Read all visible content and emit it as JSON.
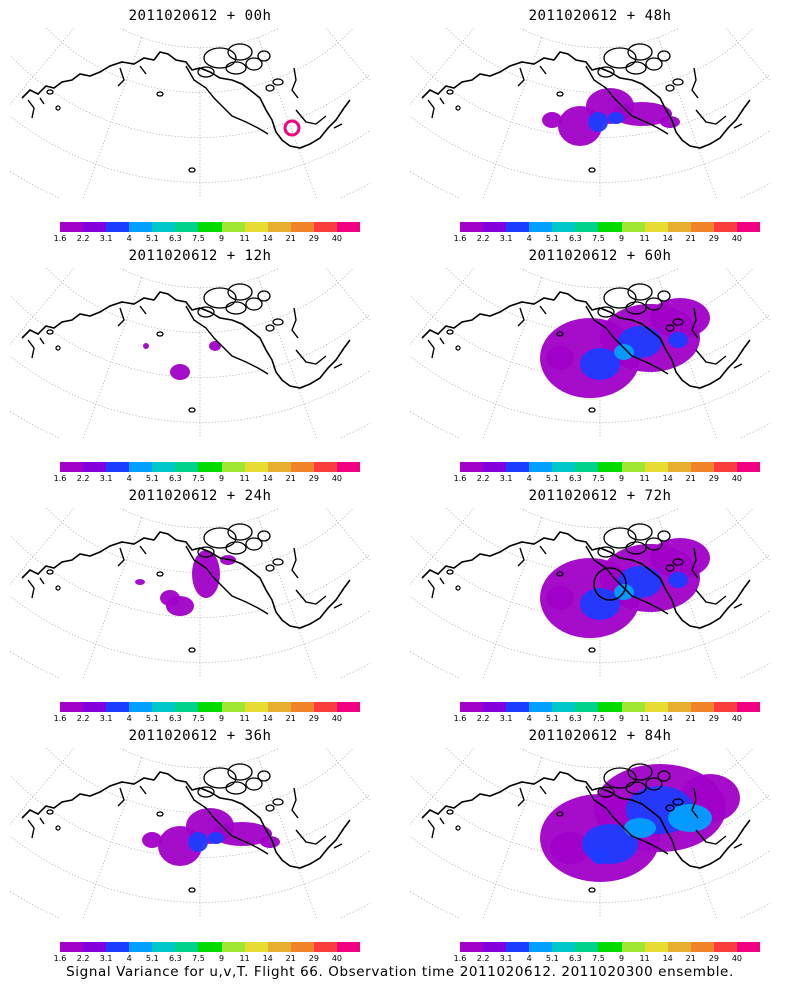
{
  "panels": [
    {
      "title": "2011020612 + 00h",
      "coverage": "none",
      "marker": "pink-ring"
    },
    {
      "title": "2011020612 + 12h",
      "coverage": "tiny"
    },
    {
      "title": "2011020612 + 24h",
      "coverage": "small"
    },
    {
      "title": "2011020612 + 36h",
      "coverage": "medium"
    },
    {
      "title": "2011020612 + 48h",
      "coverage": "medium"
    },
    {
      "title": "2011020612 + 60h",
      "coverage": "large"
    },
    {
      "title": "2011020612 + 72h",
      "coverage": "large",
      "marker": "black-ring"
    },
    {
      "title": "2011020612 + 84h",
      "coverage": "xlarge"
    }
  ],
  "colorbar": {
    "labels": [
      "1.6",
      "2.2",
      "3.1",
      "4",
      "5.1",
      "6.3",
      "7.5",
      "9",
      "11",
      "14",
      "21",
      "29",
      "40"
    ],
    "colors": [
      "#a000c8",
      "#8200dc",
      "#1e3cff",
      "#00a0ff",
      "#00c8c8",
      "#00d28c",
      "#00dc00",
      "#a0e632",
      "#e6dc32",
      "#e6af2d",
      "#f08228",
      "#fa3c3c",
      "#f00082"
    ]
  },
  "caption": "Signal Variance for u,v,T. Flight 66. Observation time 2011020612. 2011020300 ensemble."
}
